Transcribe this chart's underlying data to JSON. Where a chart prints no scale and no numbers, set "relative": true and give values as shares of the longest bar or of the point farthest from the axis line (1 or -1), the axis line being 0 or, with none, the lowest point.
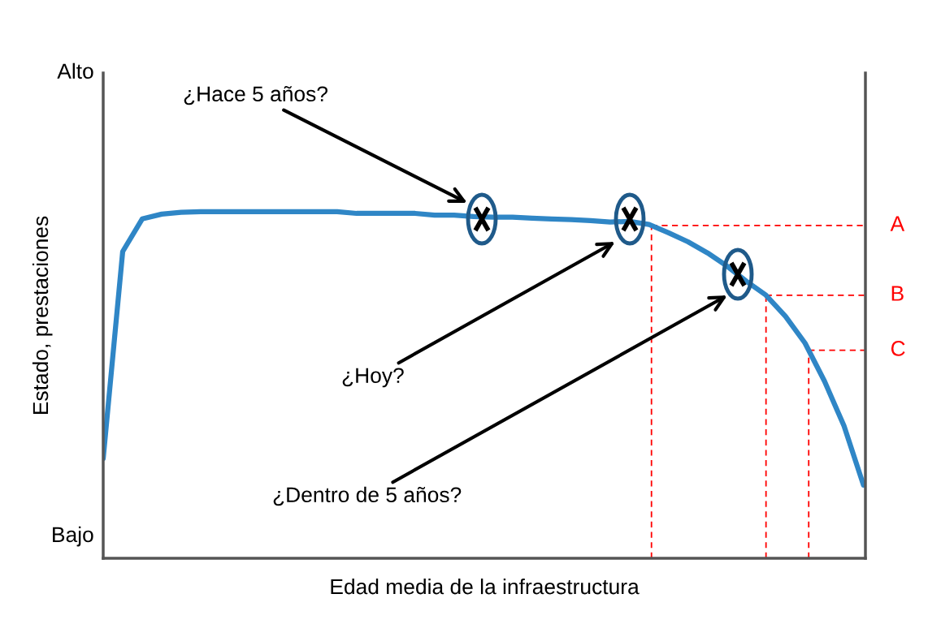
{
  "chart_data": {
    "type": "line",
    "relative": true,
    "xlabel": "Edad media de la infraestructura",
    "ylabel": "Estado, prestaciones",
    "categories": [
      null,
      null,
      null,
      null,
      null,
      null,
      null,
      null,
      null,
      null,
      null,
      null,
      null,
      null,
      null,
      null,
      null,
      null,
      null,
      null,
      null,
      null,
      null,
      null,
      null,
      null,
      null,
      null,
      null,
      null,
      null,
      null,
      null,
      null,
      null,
      null,
      null,
      null,
      null,
      null
    ],
    "series": [
      {
        "color": "#2f86c6",
        "values": [
          0.288,
          0.885,
          0.979,
          0.993,
          0.998,
          1.0,
          1.0,
          1.0,
          1.0,
          1.0,
          1.0,
          1.0,
          1.0,
          0.995,
          0.995,
          0.995,
          0.995,
          0.99,
          0.99,
          0.986,
          0.984,
          0.984,
          0.981,
          0.979,
          0.977,
          0.974,
          0.97,
          0.972,
          0.963,
          0.939,
          0.913,
          0.881,
          0.843,
          0.799,
          0.759,
          0.698,
          0.621,
          0.511,
          0.382,
          0.211
        ]
      }
    ],
    "ref_lines": [
      {
        "axis": "y",
        "value": 0.96,
        "label": "A",
        "color": "#ff0000",
        "line_style": "dashed"
      },
      {
        "axis": "y",
        "value": 0.759,
        "label": "B",
        "color": "#ff0000",
        "line_style": "dashed"
      },
      {
        "axis": "y",
        "value": 0.6,
        "label": "C",
        "color": "#ff0000",
        "line_style": "dashed"
      }
    ],
    "annotations": [
      "Alto",
      "Bajo",
      "¿Hace 5 años?",
      "¿Hoy?",
      "¿Dentro de 5 años?"
    ]
  }
}
